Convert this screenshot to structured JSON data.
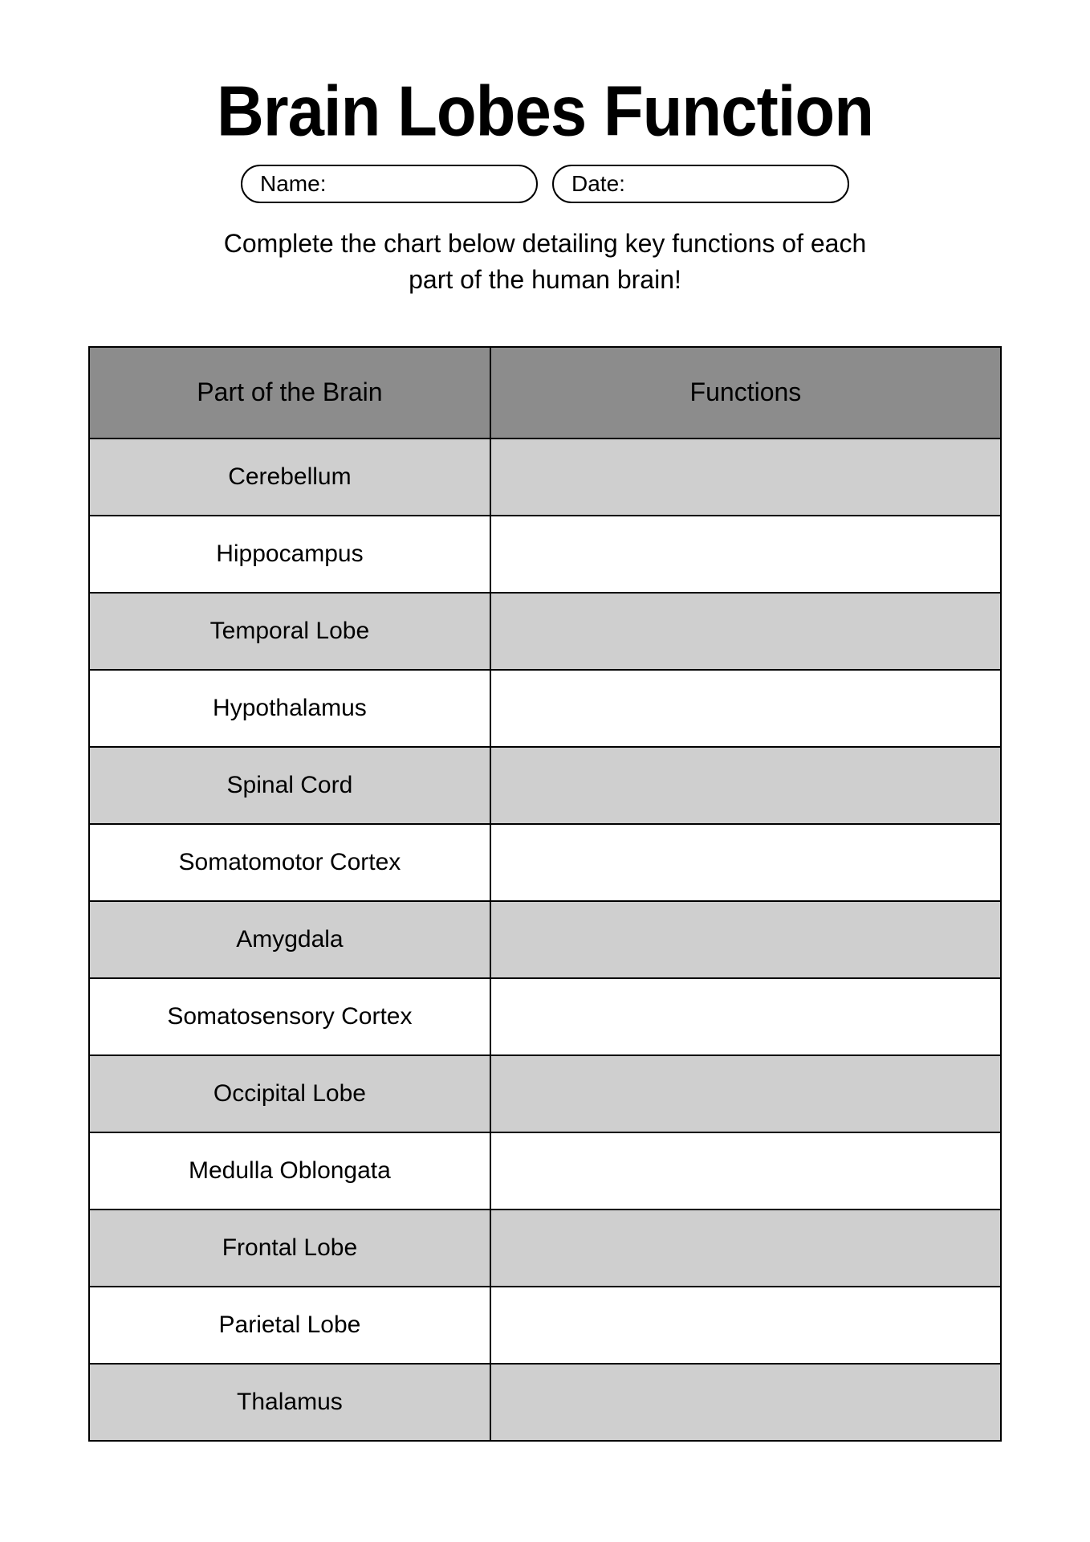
{
  "title": "Brain Lobes Function",
  "fields": {
    "name_label": "Name:",
    "date_label": "Date:"
  },
  "instructions": "Complete the chart below detailing key functions of each part of the human brain!",
  "table": {
    "columns": [
      "Part of the Brain",
      "Functions"
    ],
    "header_bg": "#8c8c8c",
    "row_bg_alt": "#cfcfcf",
    "row_bg": "#ffffff",
    "border_color": "#000000",
    "col_widths": [
      "44%",
      "56%"
    ],
    "rows": [
      {
        "part": "Cerebellum",
        "func": ""
      },
      {
        "part": "Hippocampus",
        "func": ""
      },
      {
        "part": "Temporal Lobe",
        "func": ""
      },
      {
        "part": "Hypothalamus",
        "func": ""
      },
      {
        "part": "Spinal Cord",
        "func": ""
      },
      {
        "part": "Somatomotor Cortex",
        "func": ""
      },
      {
        "part": "Amygdala",
        "func": ""
      },
      {
        "part": "Somatosensory Cortex",
        "func": ""
      },
      {
        "part": "Occipital Lobe",
        "func": ""
      },
      {
        "part": "Medulla Oblongata",
        "func": ""
      },
      {
        "part": "Frontal Lobe",
        "func": ""
      },
      {
        "part": "Parietal Lobe",
        "func": ""
      },
      {
        "part": "Thalamus",
        "func": ""
      }
    ]
  }
}
